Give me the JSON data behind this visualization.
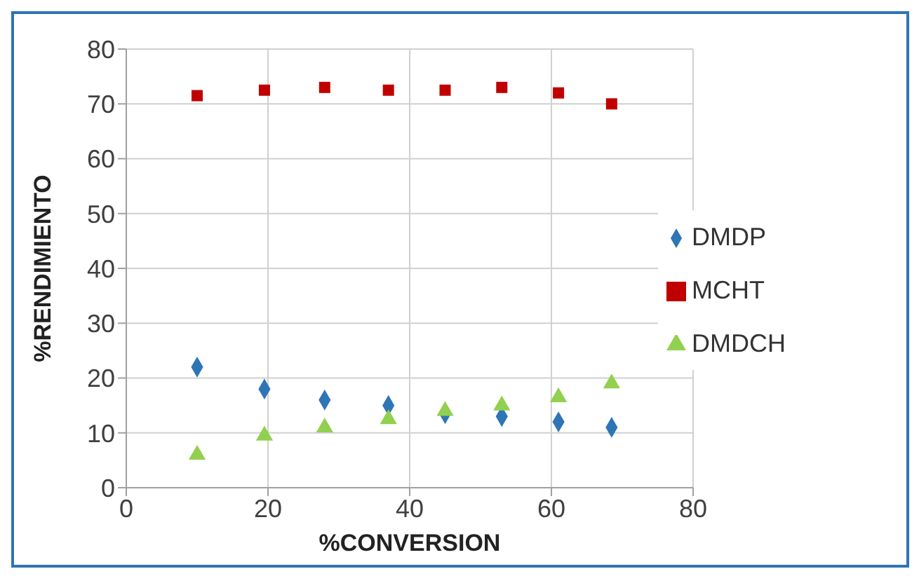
{
  "chart_data": {
    "type": "scatter",
    "xlabel": "%CONVERSION",
    "ylabel": "%RENDIMIENTO",
    "x": [
      10,
      19.5,
      28,
      37,
      45,
      53,
      61,
      68.5
    ],
    "series": [
      {
        "name": "DMDP",
        "color": "#2e75b6",
        "marker": "diamond",
        "values": [
          22,
          18,
          16,
          15,
          13.5,
          13,
          12,
          11
        ]
      },
      {
        "name": "MCHT",
        "color": "#c00000",
        "marker": "square",
        "values": [
          71.5,
          72.5,
          73,
          72.5,
          72.5,
          73,
          72,
          70
        ]
      },
      {
        "name": "DMDCH",
        "color": "#92d050",
        "marker": "triangle",
        "values": [
          6,
          9.5,
          11,
          12.5,
          14,
          15,
          16.5,
          19
        ]
      }
    ],
    "xlim": [
      0,
      80
    ],
    "xticks": [
      0,
      20,
      40,
      60,
      80
    ],
    "ylim": [
      0,
      80
    ],
    "yticks": [
      0,
      10,
      20,
      30,
      40,
      50,
      60,
      70,
      80
    ],
    "grid": true,
    "legend": "right"
  }
}
